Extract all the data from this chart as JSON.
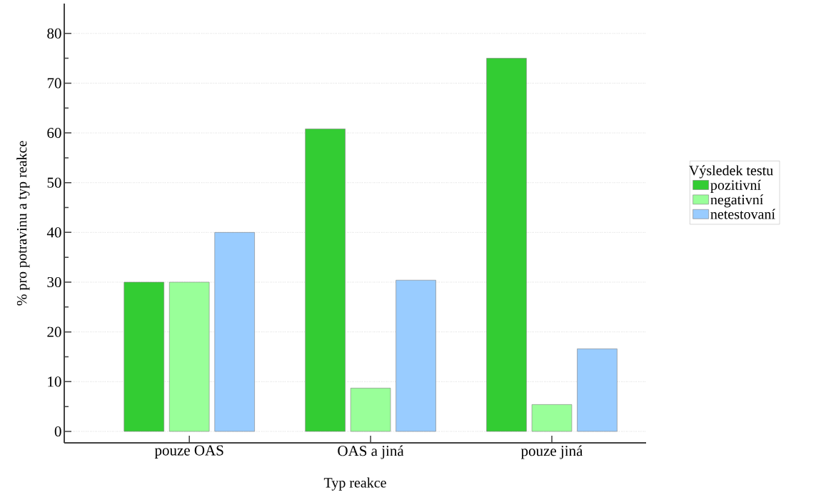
{
  "chart_data": {
    "type": "bar",
    "xlabel": "Typ reakce",
    "ylabel": "% pro potravinu a typ reakce",
    "legend_title": "Výsledek testu",
    "categories": [
      "pouze OAS",
      "OAS a jiná",
      "pouze jiná"
    ],
    "series": [
      {
        "name": "pozitivní",
        "color": "#33cc33",
        "values": [
          30,
          60.8,
          75
        ]
      },
      {
        "name": "negativní",
        "color": "#99ff99",
        "values": [
          30,
          8.7,
          5.4
        ]
      },
      {
        "name": "netestovaní",
        "color": "#99ccff",
        "values": [
          40,
          30.4,
          16.6
        ]
      }
    ],
    "ylim": [
      -2.3,
      86
    ],
    "yticks": [
      0,
      10,
      20,
      30,
      40,
      50,
      60,
      70,
      80
    ],
    "grid": "y",
    "legend": "right"
  }
}
